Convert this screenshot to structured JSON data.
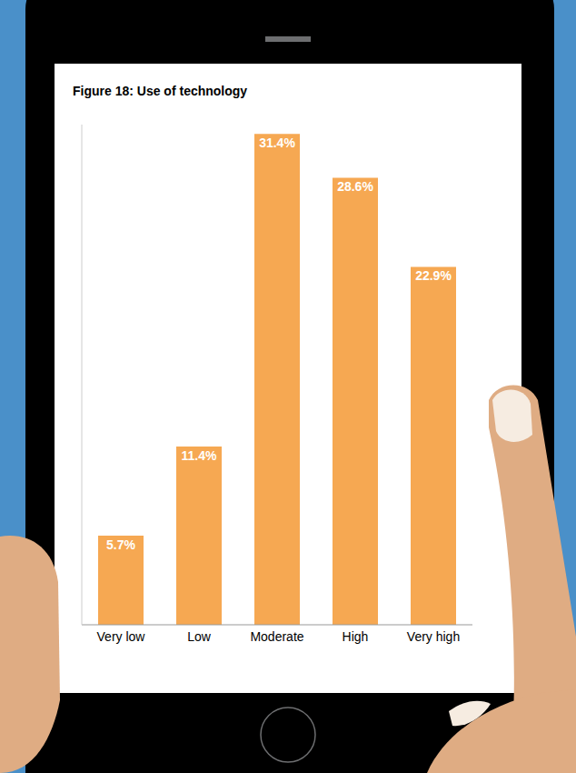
{
  "chart_data": {
    "type": "bar",
    "title": "Figure 18: Use of technology",
    "categories": [
      "Very low",
      "Low",
      "Moderate",
      "High",
      "Very high"
    ],
    "values": [
      5.7,
      11.4,
      31.4,
      28.6,
      22.9
    ],
    "value_labels": [
      "5.7%",
      "11.4%",
      "31.4%",
      "28.6%",
      "22.9%"
    ],
    "color": "#f6a852",
    "ylim": [
      0,
      32
    ],
    "data_labels": true,
    "tick_labels": "x"
  }
}
